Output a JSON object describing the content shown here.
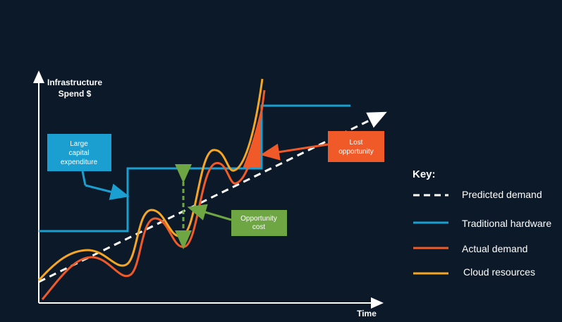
{
  "axes": {
    "y_label": [
      "Infrastructure",
      "Spend $"
    ],
    "x_label": "Time"
  },
  "callouts": {
    "capex": [
      "Large",
      "capital",
      "expenditure"
    ],
    "lost": [
      "Lost",
      "opportunity"
    ],
    "opportunity": [
      "Opportunity",
      "cost"
    ]
  },
  "key": {
    "title": "Key:",
    "items": [
      "Predicted demand",
      "Traditional hardware",
      "Actual demand",
      "Cloud resources"
    ]
  }
}
